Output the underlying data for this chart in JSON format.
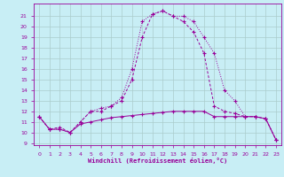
{
  "xlabel": "Windchill (Refroidissement éolien,°C)",
  "x": [
    0,
    1,
    2,
    3,
    4,
    5,
    6,
    7,
    8,
    9,
    10,
    11,
    12,
    13,
    14,
    15,
    16,
    17,
    18,
    19,
    20,
    21,
    22,
    23
  ],
  "line1": [
    11.5,
    10.3,
    10.3,
    10.0,
    10.8,
    11.0,
    11.2,
    11.4,
    11.5,
    11.6,
    11.7,
    11.8,
    11.9,
    12.0,
    12.0,
    12.0,
    12.0,
    11.5,
    11.5,
    11.5,
    11.5,
    11.5,
    11.3,
    9.3
  ],
  "line2": [
    11.5,
    10.3,
    10.5,
    10.0,
    11.0,
    12.0,
    12.0,
    12.5,
    13.0,
    15.0,
    19.0,
    21.2,
    21.5,
    21.0,
    20.5,
    19.5,
    17.5,
    12.5,
    12.0,
    11.8,
    11.5,
    11.5,
    11.3,
    9.3
  ],
  "line3": [
    11.5,
    10.3,
    10.3,
    10.0,
    11.0,
    12.0,
    12.3,
    12.5,
    13.3,
    16.0,
    20.5,
    21.2,
    21.5,
    21.0,
    21.0,
    20.5,
    19.0,
    17.5,
    14.0,
    13.0,
    11.5,
    11.5,
    11.3,
    9.3
  ],
  "line_color": "#990099",
  "bg_color": "#c8eef5",
  "grid_color": "#aacccc",
  "ylim": [
    9,
    22
  ],
  "xlim": [
    -0.5,
    23.5
  ],
  "yticks": [
    9,
    10,
    11,
    12,
    13,
    14,
    15,
    16,
    17,
    18,
    19,
    20,
    21
  ],
  "xticks": [
    0,
    1,
    2,
    3,
    4,
    5,
    6,
    7,
    8,
    9,
    10,
    11,
    12,
    13,
    14,
    15,
    16,
    17,
    18,
    19,
    20,
    21,
    22,
    23
  ]
}
